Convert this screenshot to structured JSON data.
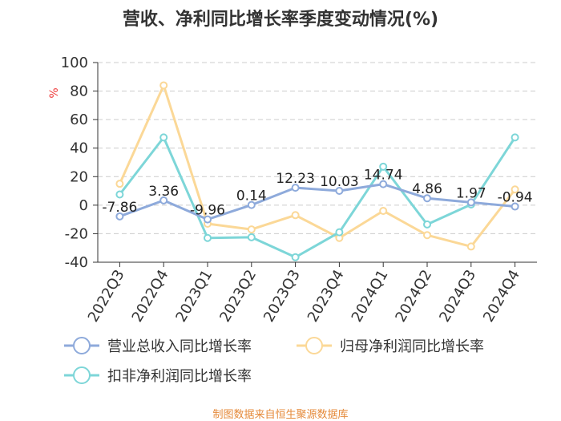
{
  "chart_data": {
    "type": "line",
    "title": "营收、净利同比增长率季度变动情况(%)",
    "ylabel": "%",
    "xlabel": "",
    "ylim": [
      -40,
      100
    ],
    "yticks": [
      100,
      80,
      60,
      40,
      20,
      0,
      -20,
      -40
    ],
    "categories": [
      "2022Q3",
      "2022Q4",
      "2023Q1",
      "2023Q2",
      "2023Q3",
      "2023Q4",
      "2024Q1",
      "2024Q2",
      "2024Q3",
      "2024Q4"
    ],
    "series": [
      {
        "name": "营业总收入同比增长率",
        "color": "#8eaadb",
        "values": [
          -7.86,
          3.36,
          -9.96,
          0.14,
          12.23,
          10.03,
          14.74,
          4.86,
          1.97,
          -0.94
        ],
        "labels": [
          "-7.86",
          "3.36",
          "-9.96",
          "0.14",
          "12.23",
          "10.03",
          "14.74",
          "4.86",
          "1.97",
          "-0.94"
        ]
      },
      {
        "name": "归母净利润同比增长率",
        "color": "#fbd897",
        "values": [
          15,
          84,
          -13,
          -17,
          -7,
          -23,
          -4,
          -21,
          -29,
          11
        ]
      },
      {
        "name": "扣非净利润同比增长率",
        "color": "#7dd6d8",
        "values": [
          7.5,
          47.5,
          -23,
          -22.5,
          -36.5,
          -19,
          27,
          -13.5,
          0.5,
          47.5
        ]
      }
    ],
    "grid": true,
    "legend_position": "bottom"
  },
  "source_text": "制图数据来自恒生聚源数据库"
}
